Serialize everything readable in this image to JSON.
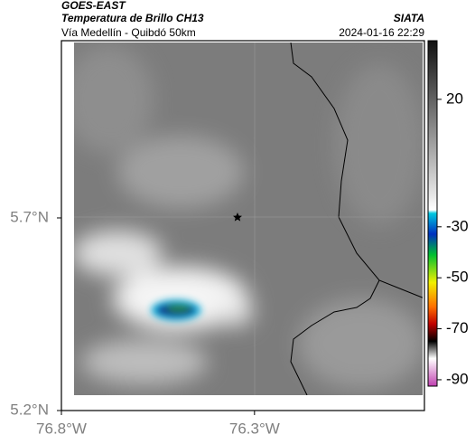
{
  "header": {
    "source": "GOES-EAST",
    "title": "Temperatura de Brillo CH13",
    "brand": "SIATA",
    "subtitle": "Vía Medellín - Quibdó 50km",
    "timestamp": "2024-01-16 22:29"
  },
  "map": {
    "xlim": [
      -76.8,
      -75.86
    ],
    "ylim": [
      5.2,
      6.16
    ],
    "xticks": [
      {
        "value": -76.8,
        "label": "76.8°W"
      },
      {
        "value": -76.3,
        "label": "76.3°W"
      }
    ],
    "yticks": [
      {
        "value": 5.7,
        "label": "5.7°N"
      },
      {
        "value": 5.2,
        "label": "5.2°N"
      }
    ]
  },
  "colorbar": {
    "lim": [
      -92.5,
      43
    ],
    "ticks": [
      20,
      -30,
      -50,
      -70,
      -90
    ]
  }
}
